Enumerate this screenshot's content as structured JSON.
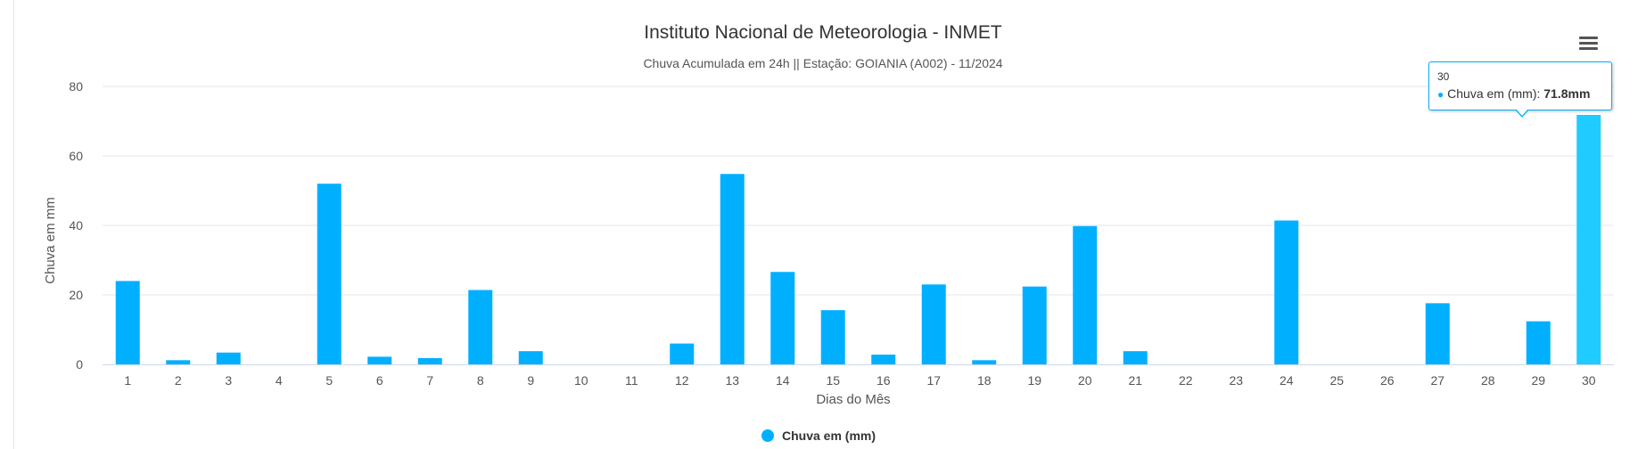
{
  "chart_data": {
    "type": "bar",
    "title": "Instituto Nacional de Meteorologia - INMET",
    "subtitle": "Chuva Acumulada em 24h || Estação: GOIANIA (A002) - 11/2024",
    "xlabel": "Dias do Mês",
    "ylabel": "Chuva em mm",
    "ylim": [
      0,
      80
    ],
    "yticks": [
      0,
      20,
      40,
      60,
      80
    ],
    "categories": [
      "1",
      "2",
      "3",
      "4",
      "5",
      "6",
      "7",
      "8",
      "9",
      "10",
      "11",
      "12",
      "13",
      "14",
      "15",
      "16",
      "17",
      "18",
      "19",
      "20",
      "21",
      "22",
      "23",
      "24",
      "25",
      "26",
      "27",
      "28",
      "29",
      "30"
    ],
    "series": [
      {
        "name": "Chuva em (mm)",
        "color": "#00b0ff",
        "values": [
          24,
          1.2,
          3.4,
          0,
          52,
          2.2,
          1.8,
          21.4,
          3.8,
          0,
          0,
          6,
          54.8,
          26.6,
          15.6,
          2.8,
          23,
          1.2,
          22.4,
          39.8,
          3.8,
          0,
          0,
          41.4,
          0,
          0,
          17.6,
          0,
          12.4,
          71.8
        ]
      }
    ],
    "grid": true,
    "legend_position": "bottom-center",
    "highlight_color": "#1fcbff"
  },
  "tooltip": {
    "header": "30",
    "label": "Chuva em (mm): ",
    "value": "71.8mm",
    "dot": "●"
  },
  "menu_icon": "hamburger-menu-icon"
}
